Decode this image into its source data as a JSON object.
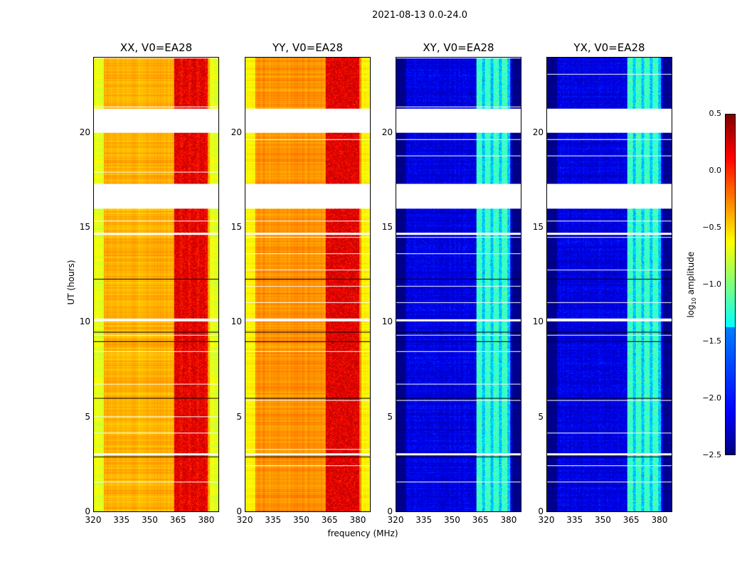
{
  "suptitle": "2021-08-13 0.0-24.0",
  "chart_data": {
    "type": "heatmap",
    "title": "2021-08-13 0.0-24.0",
    "xlabel": "frequency (MHz)",
    "ylabel": "UT (hours)",
    "xlim": [
      320,
      386.8
    ],
    "ylim": [
      0,
      24
    ],
    "xticks": [
      "320",
      "335",
      "350",
      "365",
      "380"
    ],
    "yticks": [
      "0",
      "5",
      "10",
      "15",
      "20"
    ],
    "flagged_time_ranges_hours": [
      [
        20.05,
        21.3
      ],
      [
        16.05,
        17.35
      ],
      [
        14.65,
        14.75
      ],
      [
        10.05,
        10.2
      ],
      [
        3.0,
        3.1
      ]
    ],
    "rfi_band_mhz": [
      363,
      381
    ],
    "panels": [
      {
        "title": "XX, V0=EA28",
        "baseline_log10": -0.4,
        "rfi_band_log10": 0.2
      },
      {
        "title": "YY, V0=EA28",
        "baseline_log10": -0.3,
        "rfi_band_log10": 0.2
      },
      {
        "title": "XY, V0=EA28",
        "baseline_log10": -2.2,
        "rfi_band_log10": -1.2
      },
      {
        "title": "YX, V0=EA28",
        "baseline_log10": -2.2,
        "rfi_band_log10": -1.2
      }
    ],
    "colorbar": {
      "label": "log10 amplitude",
      "range": [
        -2.5,
        0.5
      ],
      "ticks": [
        "0.5",
        "0.0",
        "−0.5",
        "−1.0",
        "−1.5",
        "−2.0",
        "−2.5"
      ],
      "colormap": "jet"
    }
  }
}
